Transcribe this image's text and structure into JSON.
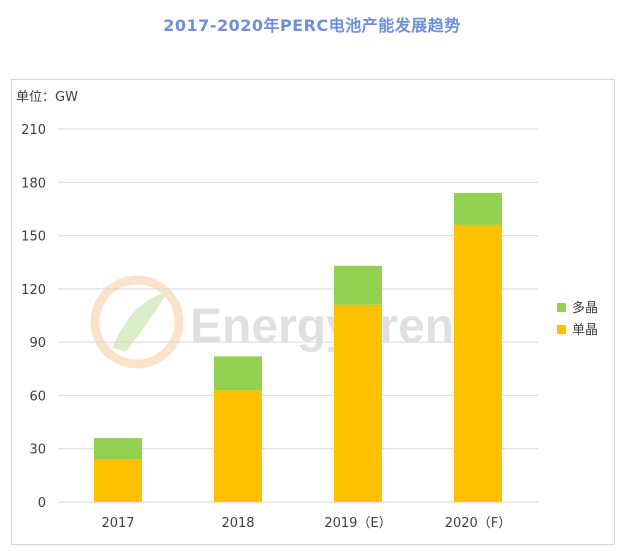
{
  "page_title": "2017-2020年PERC电池产能发展趋势",
  "unit_label": "单位：GW",
  "watermark": "EnergyTrend",
  "colors": {
    "title": "#6f8fd8",
    "mono": "#ffc000",
    "multi": "#92d050",
    "axis_text": "#404040",
    "grid": "#d9d9d9"
  },
  "chart_data": {
    "type": "bar",
    "stacked": true,
    "title": "2017-2020年PERC电池产能发展趋势",
    "ylabel": "单位：GW",
    "ylim": [
      0,
      210
    ],
    "yticks": [
      0,
      30,
      60,
      90,
      120,
      150,
      180,
      210
    ],
    "grid": true,
    "legend_position": "right",
    "categories": [
      "2017",
      "2018",
      "2019（E）",
      "2020（F）"
    ],
    "series": [
      {
        "name": "单晶",
        "color": "#ffc000",
        "values": [
          24,
          63,
          111,
          156
        ]
      },
      {
        "name": "多晶",
        "color": "#92d050",
        "values": [
          12,
          19,
          22,
          18
        ]
      }
    ]
  }
}
